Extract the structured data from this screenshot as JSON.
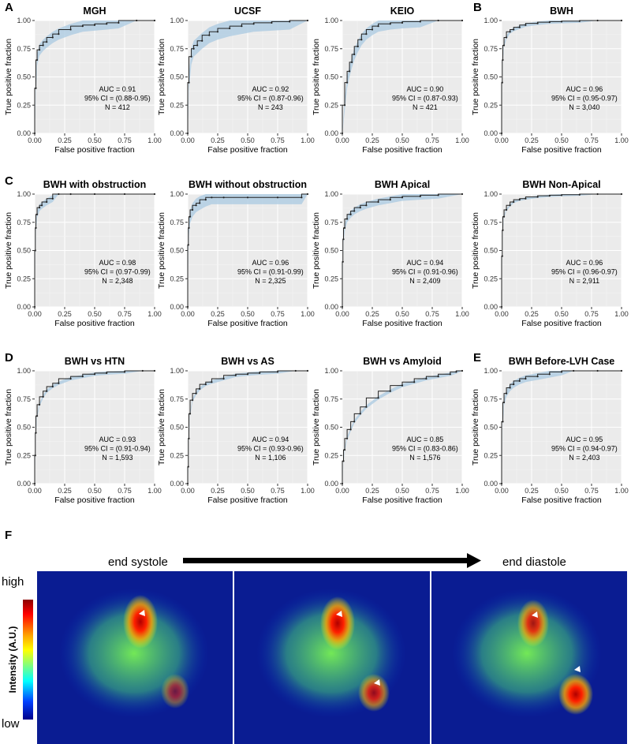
{
  "figure": {
    "panel_f_letter": "F",
    "heatmap": {
      "start_label": "end systole",
      "end_label": "end diastole",
      "colorbar_high": "high",
      "colorbar_low": "low",
      "colorbar_title": "Intensity (A.U.)"
    }
  },
  "chart_data": [
    {
      "type": "line",
      "letter": "A",
      "title": "MGH",
      "xlabel": "False positive fraction",
      "ylabel": "True positive fraction",
      "xlim": [
        0,
        1
      ],
      "ylim": [
        0,
        1
      ],
      "xticks": [
        "0.00",
        "0.25",
        "0.50",
        "0.75",
        "1.00"
      ],
      "yticks": [
        "0.00",
        "0.25",
        "0.50",
        "0.75",
        "1.00"
      ],
      "auc": "AUC = 0.91",
      "ci": "95% CI = (0.88-0.95)",
      "n": "N = 412",
      "x": [
        0,
        0.01,
        0.02,
        0.04,
        0.07,
        0.1,
        0.15,
        0.2,
        0.3,
        0.4,
        0.5,
        0.6,
        0.7,
        0.85,
        1.0
      ],
      "y": [
        0,
        0.4,
        0.65,
        0.74,
        0.78,
        0.81,
        0.85,
        0.88,
        0.92,
        0.95,
        0.96,
        0.97,
        0.98,
        1.0,
        1.0
      ],
      "band": 0.05
    },
    {
      "type": "line",
      "letter": "",
      "title": "UCSF",
      "xlabel": "False positive fraction",
      "ylabel": "True positive fraction",
      "xlim": [
        0,
        1
      ],
      "ylim": [
        0,
        1
      ],
      "xticks": [
        "0.00",
        "0.25",
        "0.50",
        "0.75",
        "1.00"
      ],
      "yticks": [
        "0.00",
        "0.25",
        "0.50",
        "0.75",
        "1.00"
      ],
      "auc": "AUC = 0.92",
      "ci": "95% CI = (0.87-0.96)",
      "n": "N = 243",
      "x": [
        0,
        0.01,
        0.03,
        0.05,
        0.08,
        0.12,
        0.18,
        0.25,
        0.35,
        0.45,
        0.55,
        0.7,
        0.85,
        1.0
      ],
      "y": [
        0,
        0.45,
        0.68,
        0.75,
        0.78,
        0.82,
        0.87,
        0.9,
        0.93,
        0.95,
        0.97,
        0.98,
        0.99,
        1.0
      ],
      "band": 0.07
    },
    {
      "type": "line",
      "letter": "",
      "title": "KEIO",
      "xlabel": "False positive fraction",
      "ylabel": "True positive fraction",
      "xlim": [
        0,
        1
      ],
      "ylim": [
        0,
        1
      ],
      "xticks": [
        "0.00",
        "0.25",
        "0.50",
        "0.75",
        "1.00"
      ],
      "yticks": [
        "0.00",
        "0.25",
        "0.50",
        "0.75",
        "1.00"
      ],
      "auc": "AUC = 0.90",
      "ci": "95% CI = (0.87-0.93)",
      "n": "N = 421",
      "x": [
        0,
        0.02,
        0.04,
        0.06,
        0.08,
        0.1,
        0.13,
        0.16,
        0.2,
        0.25,
        0.3,
        0.4,
        0.5,
        0.65,
        0.8,
        1.0
      ],
      "y": [
        0,
        0.25,
        0.45,
        0.55,
        0.63,
        0.7,
        0.77,
        0.83,
        0.88,
        0.92,
        0.95,
        0.97,
        0.98,
        0.99,
        1.0,
        1.0
      ],
      "band": 0.05
    },
    {
      "type": "line",
      "letter": "B",
      "title": "BWH",
      "xlabel": "False positive fraction",
      "ylabel": "True positive fraction",
      "xlim": [
        0,
        1
      ],
      "ylim": [
        0,
        1
      ],
      "xticks": [
        "0.00",
        "0.25",
        "0.50",
        "0.75",
        "1.00"
      ],
      "yticks": [
        "0.00",
        "0.25",
        "0.50",
        "0.75",
        "1.00"
      ],
      "auc": "AUC = 0.96",
      "ci": "95% CI = (0.95-0.97)",
      "n": "N = 3,040",
      "x": [
        0,
        0.005,
        0.01,
        0.02,
        0.04,
        0.07,
        0.1,
        0.15,
        0.2,
        0.3,
        0.4,
        0.5,
        0.65,
        0.8,
        1.0
      ],
      "y": [
        0,
        0.45,
        0.65,
        0.78,
        0.85,
        0.9,
        0.92,
        0.94,
        0.96,
        0.975,
        0.985,
        0.99,
        0.995,
        1.0,
        1.0
      ],
      "band": 0.015
    },
    {
      "type": "line",
      "letter": "C",
      "title": "BWH with obstruction",
      "xlabel": "False positive fraction",
      "ylabel": "True positive fraction",
      "xlim": [
        0,
        1
      ],
      "ylim": [
        0,
        1
      ],
      "xticks": [
        "0.00",
        "0.25",
        "0.50",
        "0.75",
        "1.00"
      ],
      "yticks": [
        "0.00",
        "0.25",
        "0.50",
        "0.75",
        "1.00"
      ],
      "auc": "AUC = 0.98",
      "ci": "95% CI = (0.97-0.99)",
      "n": "N = 2,348",
      "x": [
        0,
        0.005,
        0.01,
        0.02,
        0.04,
        0.06,
        0.1,
        0.15,
        0.2,
        0.3,
        0.5,
        0.75,
        1.0
      ],
      "y": [
        0,
        0.5,
        0.7,
        0.82,
        0.88,
        0.9,
        0.93,
        0.96,
        1.0,
        1.0,
        1.0,
        1.0,
        1.0
      ],
      "band": 0.03
    },
    {
      "type": "line",
      "letter": "",
      "title": "BWH without obstruction",
      "xlabel": "False positive fraction",
      "ylabel": "True positive fraction",
      "xlim": [
        0,
        1
      ],
      "ylim": [
        0,
        1
      ],
      "xticks": [
        "0.00",
        "0.25",
        "0.50",
        "0.75",
        "1.00"
      ],
      "yticks": [
        "0.00",
        "0.25",
        "0.50",
        "0.75",
        "1.00"
      ],
      "auc": "AUC = 0.96",
      "ci": "95% CI = (0.91-0.99)",
      "n": "N = 2,325",
      "x": [
        0,
        0.005,
        0.01,
        0.02,
        0.04,
        0.07,
        0.1,
        0.15,
        0.2,
        0.3,
        0.5,
        0.75,
        0.95,
        1.0
      ],
      "y": [
        0,
        0.55,
        0.7,
        0.8,
        0.86,
        0.9,
        0.92,
        0.95,
        0.97,
        0.97,
        0.97,
        0.97,
        0.97,
        1.0
      ],
      "band": 0.06
    },
    {
      "type": "line",
      "letter": "",
      "title": "BWH Apical",
      "xlabel": "False positive fraction",
      "ylabel": "True positive fraction",
      "xlim": [
        0,
        1
      ],
      "ylim": [
        0,
        1
      ],
      "xticks": [
        "0.00",
        "0.25",
        "0.50",
        "0.75",
        "1.00"
      ],
      "yticks": [
        "0.00",
        "0.25",
        "0.50",
        "0.75",
        "1.00"
      ],
      "auc": "AUC = 0.94",
      "ci": "95% CI = (0.91-0.96)",
      "n": "N = 2,409",
      "x": [
        0,
        0.005,
        0.01,
        0.02,
        0.04,
        0.07,
        0.1,
        0.15,
        0.2,
        0.3,
        0.4,
        0.5,
        0.65,
        0.8,
        1.0
      ],
      "y": [
        0,
        0.4,
        0.6,
        0.7,
        0.78,
        0.82,
        0.85,
        0.88,
        0.9,
        0.93,
        0.95,
        0.97,
        0.98,
        0.99,
        1.0
      ],
      "band": 0.03
    },
    {
      "type": "line",
      "letter": "",
      "title": "BWH Non-Apical",
      "xlabel": "False positive fraction",
      "ylabel": "True positive fraction",
      "xlim": [
        0,
        1
      ],
      "ylim": [
        0,
        1
      ],
      "xticks": [
        "0.00",
        "0.25",
        "0.50",
        "0.75",
        "1.00"
      ],
      "yticks": [
        "0.00",
        "0.25",
        "0.50",
        "0.75",
        "1.00"
      ],
      "auc": "AUC = 0.96",
      "ci": "95% CI = (0.96-0.97)",
      "n": "N = 2,911",
      "x": [
        0,
        0.005,
        0.01,
        0.02,
        0.04,
        0.07,
        0.1,
        0.15,
        0.2,
        0.3,
        0.4,
        0.5,
        0.65,
        0.8,
        1.0
      ],
      "y": [
        0,
        0.45,
        0.68,
        0.8,
        0.86,
        0.9,
        0.93,
        0.95,
        0.96,
        0.975,
        0.985,
        0.99,
        0.995,
        1.0,
        1.0
      ],
      "band": 0.01
    },
    {
      "type": "line",
      "letter": "D",
      "title": "BWH vs HTN",
      "xlabel": "False positive fraction",
      "ylabel": "True positive fraction",
      "xlim": [
        0,
        1
      ],
      "ylim": [
        0,
        1
      ],
      "xticks": [
        "0.00",
        "0.25",
        "0.50",
        "0.75",
        "1.00"
      ],
      "yticks": [
        "0.00",
        "0.25",
        "0.50",
        "0.75",
        "1.00"
      ],
      "auc": "AUC = 0.93",
      "ci": "95% CI = (0.91-0.94)",
      "n": "N = 1,593",
      "x": [
        0,
        0.005,
        0.01,
        0.02,
        0.04,
        0.07,
        0.1,
        0.15,
        0.2,
        0.3,
        0.4,
        0.5,
        0.6,
        0.75,
        0.9,
        1.0
      ],
      "y": [
        0,
        0.25,
        0.45,
        0.6,
        0.7,
        0.77,
        0.82,
        0.86,
        0.89,
        0.93,
        0.95,
        0.97,
        0.98,
        0.99,
        1.0,
        1.0
      ],
      "band": 0.015
    },
    {
      "type": "line",
      "letter": "",
      "title": "BWH vs AS",
      "xlabel": "False positive fraction",
      "ylabel": "True positive fraction",
      "xlim": [
        0,
        1
      ],
      "ylim": [
        0,
        1
      ],
      "xticks": [
        "0.00",
        "0.25",
        "0.50",
        "0.75",
        "1.00"
      ],
      "yticks": [
        "0.00",
        "0.25",
        "0.50",
        "0.75",
        "1.00"
      ],
      "auc": "AUC = 0.94",
      "ci": "95% CI = (0.93-0.96)",
      "n": "N = 1,106",
      "x": [
        0,
        0.005,
        0.01,
        0.02,
        0.04,
        0.07,
        0.1,
        0.15,
        0.2,
        0.3,
        0.4,
        0.5,
        0.6,
        0.75,
        0.9,
        1.0
      ],
      "y": [
        0,
        0.15,
        0.4,
        0.62,
        0.74,
        0.8,
        0.84,
        0.88,
        0.9,
        0.93,
        0.96,
        0.97,
        0.98,
        0.99,
        1.0,
        1.0
      ],
      "band": 0.015
    },
    {
      "type": "line",
      "letter": "",
      "title": "BWH vs Amyloid",
      "xlabel": "False positive fraction",
      "ylabel": "True positive fraction",
      "xlim": [
        0,
        1
      ],
      "ylim": [
        0,
        1
      ],
      "xticks": [
        "0.00",
        "0.25",
        "0.50",
        "0.75",
        "1.00"
      ],
      "yticks": [
        "0.00",
        "0.25",
        "0.50",
        "0.75",
        "1.00"
      ],
      "auc": "AUC = 0.85",
      "ci": "95% CI = (0.83-0.86)",
      "n": "N = 1,576",
      "x": [
        0,
        0.01,
        0.02,
        0.04,
        0.07,
        0.1,
        0.15,
        0.2,
        0.3,
        0.4,
        0.5,
        0.6,
        0.7,
        0.8,
        0.9,
        0.95,
        1.0
      ],
      "y": [
        0,
        0.2,
        0.3,
        0.4,
        0.48,
        0.55,
        0.62,
        0.68,
        0.76,
        0.82,
        0.87,
        0.9,
        0.93,
        0.95,
        0.97,
        0.99,
        1.0
      ],
      "band": 0.015
    },
    {
      "type": "line",
      "letter": "E",
      "title": "BWH Before-LVH Case",
      "xlabel": "False positive fraction",
      "ylabel": "True positive fraction",
      "xlim": [
        0,
        1
      ],
      "ylim": [
        0,
        1
      ],
      "xticks": [
        "0.00",
        "0.25",
        "0.50",
        "0.75",
        "1.00"
      ],
      "yticks": [
        "0.00",
        "0.25",
        "0.50",
        "0.75",
        "1.00"
      ],
      "auc": "AUC = 0.95",
      "ci": "95% CI = (0.94-0.97)",
      "n": "N = 2,403",
      "x": [
        0,
        0.01,
        0.02,
        0.04,
        0.07,
        0.1,
        0.15,
        0.2,
        0.3,
        0.4,
        0.5,
        0.6,
        0.8,
        1.0
      ],
      "y": [
        0,
        0.55,
        0.72,
        0.8,
        0.85,
        0.88,
        0.91,
        0.93,
        0.95,
        0.97,
        0.99,
        1.0,
        1.0,
        1.0
      ],
      "band": 0.03
    }
  ]
}
